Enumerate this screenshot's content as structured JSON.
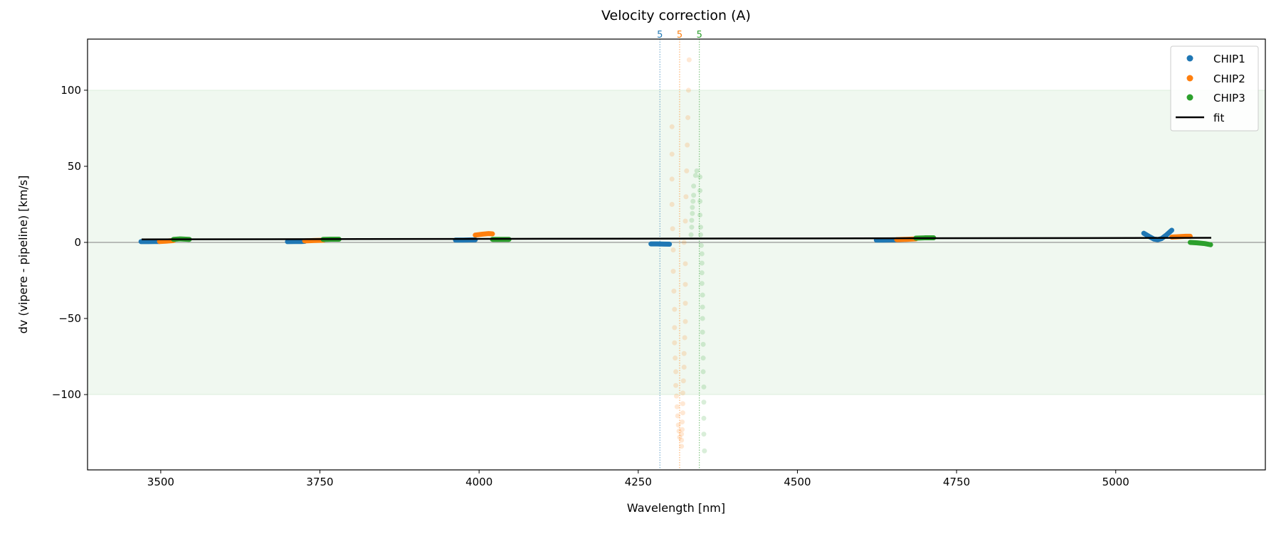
{
  "chart_data": {
    "type": "scatter",
    "title": "Velocity correction (A)",
    "xlabel": "Wavelength [nm]",
    "ylabel": "dv (vipere - pipeline) [km/s]",
    "xlim": [
      3385,
      5235
    ],
    "ylim": [
      -149.5,
      133.6
    ],
    "xticks": [
      3500,
      3750,
      4000,
      4250,
      4500,
      4750,
      5000
    ],
    "yticks": [
      -100,
      -50,
      0,
      50,
      100
    ],
    "shaded_band": {
      "ymin": -100,
      "ymax": 100,
      "color": "#2ca02c"
    },
    "zero_line": 0,
    "grid": false,
    "legend_position": "top-right",
    "markers": [
      {
        "x": 4284,
        "label": "5",
        "color": "#1f77b4"
      },
      {
        "x": 4315,
        "label": "5",
        "color": "#ff7f0e"
      },
      {
        "x": 4346,
        "label": "5",
        "color": "#2ca02c"
      }
    ],
    "series": [
      {
        "name": "CHIP1",
        "color": "#1f77b4",
        "segments": [
          [
            [
              3469,
              0.5
            ],
            [
              3480,
              0.5
            ],
            [
              3490,
              0.6
            ],
            [
              3498,
              0.6
            ]
          ],
          [
            [
              3699,
              0.5
            ],
            [
              3710,
              0.6
            ],
            [
              3720,
              0.6
            ],
            [
              3726,
              0.7
            ]
          ],
          [
            [
              3963,
              1.5
            ],
            [
              3975,
              1.5
            ],
            [
              3985,
              1.6
            ],
            [
              3994,
              1.7
            ]
          ],
          [
            [
              4270,
              -1
            ],
            [
              4280,
              -1
            ],
            [
              4290,
              -1.1
            ],
            [
              4299,
              -1.2
            ]
          ],
          [
            [
              4624,
              1.5
            ],
            [
              4635,
              1.5
            ],
            [
              4645,
              1.6
            ],
            [
              4656,
              1.7
            ]
          ],
          [
            [
              5044,
              6
            ],
            [
              5052,
              4
            ],
            [
              5060,
              2.2
            ],
            [
              5066,
              1.8
            ],
            [
              5072,
              2.5
            ],
            [
              5080,
              5
            ],
            [
              5088,
              8
            ]
          ]
        ],
        "scatter": []
      },
      {
        "name": "CHIP2",
        "color": "#ff7f0e",
        "segments": [
          [
            [
              3498,
              0.6
            ],
            [
              3508,
              0.8
            ],
            [
              3520,
              1.2
            ]
          ],
          [
            [
              3726,
              1
            ],
            [
              3740,
              1.2
            ],
            [
              3755,
              1.4
            ]
          ],
          [
            [
              3994,
              4.8
            ],
            [
              4005,
              5.4
            ],
            [
              4015,
              5.8
            ],
            [
              4021,
              5.6
            ]
          ],
          [
            [
              4656,
              1.8
            ],
            [
              4670,
              2
            ],
            [
              4686,
              2.3
            ]
          ],
          [
            [
              5088,
              3.5
            ],
            [
              5100,
              3.8
            ],
            [
              5110,
              4
            ],
            [
              5117,
              4
            ]
          ]
        ],
        "scatter": [
          [
            4330,
            120
          ],
          [
            4329,
            100
          ],
          [
            4328,
            82
          ],
          [
            4327,
            64
          ],
          [
            4326,
            47
          ],
          [
            4325,
            30
          ],
          [
            4324,
            14
          ],
          [
            4322,
            0
          ],
          [
            4324,
            -14
          ],
          [
            4324,
            -27.6
          ],
          [
            4324,
            -40
          ],
          [
            4324,
            -52
          ],
          [
            4323,
            -62.6
          ],
          [
            4322,
            -73
          ],
          [
            4322,
            -82
          ],
          [
            4321,
            -91
          ],
          [
            4320,
            -99
          ],
          [
            4320,
            -106
          ],
          [
            4320,
            -112
          ],
          [
            4319,
            -118
          ],
          [
            4319,
            -123
          ],
          [
            4318,
            -126
          ],
          [
            4318,
            -130
          ],
          [
            4318,
            -134
          ],
          [
            4303,
            76
          ],
          [
            4303,
            58
          ],
          [
            4303,
            41.6
          ],
          [
            4303,
            25
          ],
          [
            4304,
            9
          ],
          [
            4305,
            -5
          ],
          [
            4305,
            -19
          ],
          [
            4306,
            -32
          ],
          [
            4307,
            -44
          ],
          [
            4307,
            -56
          ],
          [
            4307,
            -66
          ],
          [
            4308,
            -76
          ],
          [
            4309,
            -85
          ],
          [
            4309,
            -94
          ],
          [
            4310,
            -101
          ],
          [
            4311,
            -108
          ],
          [
            4312,
            -114
          ],
          [
            4313,
            -120
          ],
          [
            4314,
            -124
          ],
          [
            4315,
            -128
          ]
        ]
      },
      {
        "name": "CHIP3",
        "color": "#2ca02c",
        "segments": [
          [
            [
              3520,
              2
            ],
            [
              3530,
              2.3
            ],
            [
              3545,
              2
            ]
          ],
          [
            [
              3755,
              2
            ],
            [
              3768,
              2.1
            ],
            [
              3780,
              2.1
            ]
          ],
          [
            [
              4021,
              2
            ],
            [
              4035,
              2
            ],
            [
              4047,
              2
            ]
          ],
          [
            [
              4686,
              2.8
            ],
            [
              4700,
              3
            ],
            [
              4714,
              3
            ]
          ],
          [
            [
              5117,
              0
            ],
            [
              5128,
              -0.3
            ],
            [
              5140,
              -0.8
            ],
            [
              5149,
              -1.5
            ]
          ]
        ],
        "scatter": [
          [
            4342,
            47
          ],
          [
            4340,
            44
          ],
          [
            4337,
            37
          ],
          [
            4337,
            31
          ],
          [
            4336,
            27
          ],
          [
            4335,
            23
          ],
          [
            4335,
            19
          ],
          [
            4334,
            14.5
          ],
          [
            4334,
            10
          ],
          [
            4333,
            5
          ],
          [
            4347,
            43
          ],
          [
            4347,
            34
          ],
          [
            4347,
            27
          ],
          [
            4347,
            18
          ],
          [
            4348,
            10
          ],
          [
            4348,
            5
          ],
          [
            4349,
            -2
          ],
          [
            4350,
            -7.5
          ],
          [
            4350,
            -13.6
          ],
          [
            4350,
            -20
          ],
          [
            4350,
            -27
          ],
          [
            4351,
            -34.6
          ],
          [
            4351,
            -42.5
          ],
          [
            4351,
            -50
          ],
          [
            4351,
            -59
          ],
          [
            4352,
            -67
          ],
          [
            4352,
            -76
          ],
          [
            4352,
            -85
          ],
          [
            4353,
            -95
          ],
          [
            4353,
            -105
          ],
          [
            4353,
            -115.6
          ],
          [
            4353,
            -126
          ],
          [
            4354,
            -137
          ]
        ]
      },
      {
        "name": "fit",
        "color": "#000000",
        "type": "line",
        "points": [
          [
            3470,
            2
          ],
          [
            5150,
            3
          ]
        ]
      }
    ]
  }
}
